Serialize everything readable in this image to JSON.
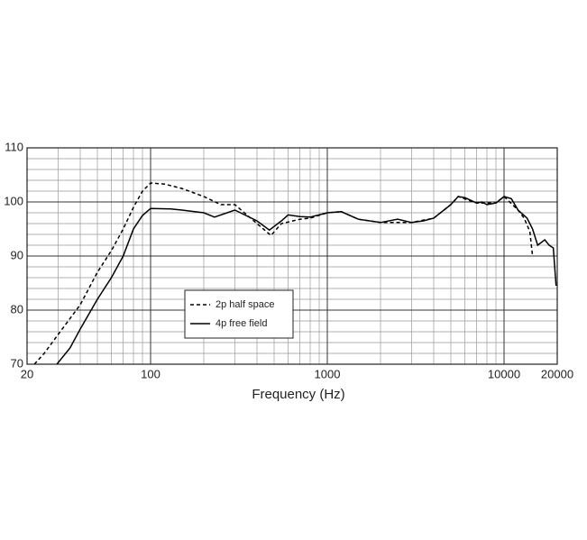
{
  "chart_data": {
    "type": "line",
    "x_label": "Frequency (Hz)",
    "xscale": "log",
    "xlim": [
      20,
      20000
    ],
    "xticks": [
      20,
      100,
      1000,
      10000,
      20000
    ],
    "ylim": [
      70,
      110
    ],
    "yticks": [
      70,
      80,
      90,
      100,
      110
    ],
    "grid": true,
    "legend": "lower-left",
    "series": [
      {
        "name": "2p half space",
        "color": "#000000",
        "line_style": "dashed",
        "x": [
          22,
          25,
          30,
          40,
          50,
          60,
          70,
          80,
          90,
          100,
          120,
          150,
          200,
          250,
          300,
          400,
          480,
          550,
          700,
          800,
          1000,
          1200,
          1500,
          2000,
          3000,
          4000,
          5000,
          5500,
          7000,
          9000,
          10000,
          12000,
          13000,
          14000,
          14500
        ],
        "values": [
          70,
          72,
          75.5,
          81,
          87,
          91,
          95,
          99,
          102,
          103.5,
          103.3,
          102.5,
          101,
          99.5,
          99.5,
          96,
          93.8,
          96,
          96.8,
          97,
          98,
          98.2,
          96.8,
          96.2,
          96.2,
          97,
          99.5,
          101,
          99.8,
          99.8,
          101,
          98.5,
          97,
          94.5,
          90
        ]
      },
      {
        "name": "4p free field",
        "color": "#000000",
        "line_style": "solid",
        "x": [
          29.5,
          35,
          40,
          50,
          60,
          70,
          80,
          90,
          100,
          130,
          150,
          200,
          230,
          300,
          400,
          470,
          550,
          600,
          700,
          800,
          1000,
          1200,
          1500,
          2000,
          2500,
          3000,
          3500,
          4000,
          5000,
          5500,
          6000,
          7000,
          7500,
          8000,
          9000,
          10000,
          11000,
          12000,
          13500,
          14500,
          15500,
          17000,
          18000,
          19000,
          19700
        ],
        "values": [
          70,
          73,
          76.5,
          82,
          86,
          90,
          95,
          97.5,
          98.8,
          98.7,
          98.5,
          98,
          97.2,
          98.5,
          96.5,
          94.8,
          96.5,
          97.6,
          97.3,
          97.2,
          98,
          98.2,
          96.8,
          96.2,
          96.8,
          96.2,
          96.5,
          97,
          99.5,
          101,
          100.8,
          99.8,
          100,
          99.5,
          99.8,
          101,
          100.6,
          98.5,
          97,
          95,
          92,
          93,
          92,
          91.5,
          84.5
        ]
      }
    ]
  }
}
